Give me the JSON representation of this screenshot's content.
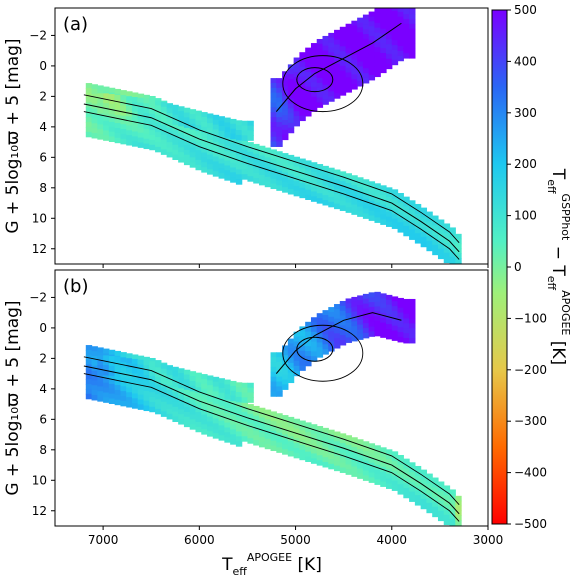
{
  "chart_data": [
    {
      "type": "heatmap",
      "panel_label": "(a)",
      "xlim": [
        7500,
        3000
      ],
      "ylim": [
        13,
        -3.8
      ],
      "xticks": [
        7000,
        6000,
        5000,
        4000,
        3000
      ],
      "yticks": [
        -2,
        0,
        2,
        4,
        6,
        8,
        10,
        12
      ],
      "ylabel": "G + 5log₁₀ϖ + 5 [mag]",
      "regions": {
        "main_sequence": [
          [
            7200,
            2.5,
            0
          ],
          [
            6500,
            3.4,
            60
          ],
          [
            6000,
            4.8,
            90
          ],
          [
            5500,
            5.9,
            110
          ],
          [
            5000,
            6.9,
            110
          ],
          [
            4500,
            7.9,
            130
          ],
          [
            4000,
            9.0,
            130
          ],
          [
            3700,
            10.2,
            140
          ],
          [
            3400,
            11.5,
            110
          ],
          [
            3300,
            12.2,
            80
          ]
        ],
        "turnoff": [
          [
            7000,
            2.4,
            -40
          ],
          [
            6500,
            2.8,
            80
          ],
          [
            6000,
            3.6,
            120
          ],
          [
            5600,
            4.2,
            140
          ]
        ],
        "giant_branch": [
          [
            5200,
            3.0,
            400
          ],
          [
            5000,
            1.5,
            500
          ],
          [
            4800,
            0.5,
            500
          ],
          [
            4500,
            -0.5,
            500
          ],
          [
            4200,
            -1.5,
            500
          ],
          [
            3900,
            -2.8,
            500
          ]
        ],
        "red_clump": [
          [
            4800,
            0.7,
            450
          ]
        ]
      }
    },
    {
      "type": "heatmap",
      "panel_label": "(b)",
      "xlim": [
        7500,
        3000
      ],
      "ylim": [
        13,
        -3.8
      ],
      "xticks": [
        7000,
        6000,
        5000,
        4000,
        3000
      ],
      "yticks": [
        -2,
        0,
        2,
        4,
        6,
        8,
        10,
        12
      ],
      "xlabel": "T_eff^APOGEE [K]",
      "ylabel": "G + 5log₁₀ϖ + 5 [mag]",
      "regions": {
        "main_sequence": [
          [
            7200,
            2.5,
            300
          ],
          [
            6500,
            3.4,
            120
          ],
          [
            6000,
            4.8,
            60
          ],
          [
            5500,
            5.9,
            20
          ],
          [
            5000,
            6.9,
            0
          ],
          [
            4500,
            7.9,
            20
          ],
          [
            4000,
            9.0,
            40
          ],
          [
            3700,
            10.2,
            60
          ],
          [
            3400,
            11.5,
            40
          ],
          [
            3300,
            12.2,
            -100
          ]
        ],
        "turnoff": [
          [
            7000,
            2.4,
            250
          ],
          [
            6500,
            2.8,
            120
          ],
          [
            6000,
            3.6,
            80
          ],
          [
            5600,
            4.2,
            60
          ]
        ],
        "giant_branch": [
          [
            5200,
            3.0,
            200
          ],
          [
            5000,
            1.5,
            260
          ],
          [
            4800,
            0.5,
            300
          ],
          [
            4500,
            -0.5,
            380
          ],
          [
            4200,
            -1.0,
            450
          ],
          [
            3900,
            -0.5,
            500
          ]
        ]
      }
    }
  ],
  "colorbar": {
    "label": "T_eff^GSPPhot − T_eff^APOGEE [K]",
    "range": [
      -500,
      500
    ],
    "ticks": [
      500,
      400,
      300,
      200,
      100,
      0,
      -100,
      -200,
      -300,
      -400,
      -500
    ],
    "colormap": "rainbow"
  }
}
